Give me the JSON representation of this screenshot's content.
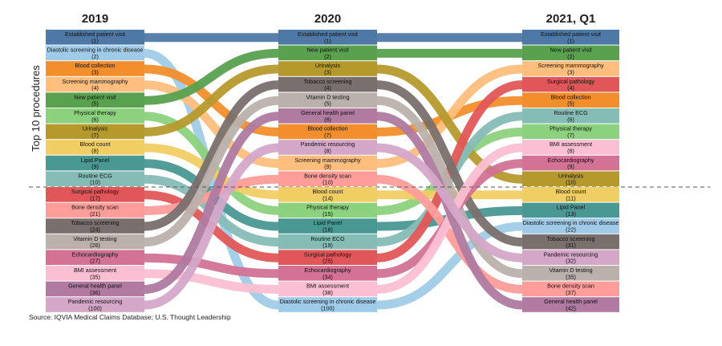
{
  "chart_data": {
    "type": "bump",
    "ylabel": "Top 10 procedures",
    "columns": [
      "2019",
      "2020",
      "2021, Q1"
    ],
    "source": "Source: IQVIA Medical Claims Database; U.S. Thought Leadership",
    "top_n_cutoff": 10,
    "series": [
      {
        "name": "Established patient visit",
        "color": "#4e79a7",
        "ranks": [
          1,
          1,
          1
        ]
      },
      {
        "name": "Diastolic screening in chronic disease",
        "color": "#a0cbe8",
        "ranks": [
          2,
          100,
          22
        ]
      },
      {
        "name": "Blood collection",
        "color": "#f28e2b",
        "ranks": [
          3,
          7,
          5
        ]
      },
      {
        "name": "Screening mammography",
        "color": "#ffbe7d",
        "ranks": [
          4,
          9,
          3
        ]
      },
      {
        "name": "New patient visit",
        "color": "#59a14f",
        "ranks": [
          5,
          2,
          2
        ]
      },
      {
        "name": "Physical therapy",
        "color": "#8cd17d",
        "ranks": [
          6,
          15,
          7
        ]
      },
      {
        "name": "Urinalysis",
        "color": "#b6992d",
        "ranks": [
          7,
          3,
          10
        ]
      },
      {
        "name": "Blood count",
        "color": "#f1ce63",
        "ranks": [
          8,
          14,
          11
        ]
      },
      {
        "name": "Lipid Panel",
        "color": "#499894",
        "ranks": [
          9,
          18,
          13
        ]
      },
      {
        "name": "Routine ECG",
        "color": "#86bcb6",
        "ranks": [
          10,
          19,
          6
        ]
      },
      {
        "name": "Surgical pathology",
        "color": "#e15759",
        "ranks": [
          17,
          25,
          4
        ]
      },
      {
        "name": "Bone density scan",
        "color": "#ff9d9a",
        "ranks": [
          21,
          10,
          37
        ]
      },
      {
        "name": "Tobacco screening",
        "color": "#79706e",
        "ranks": [
          24,
          4,
          31
        ]
      },
      {
        "name": "Vitamin D testing",
        "color": "#bab0ac",
        "ranks": [
          26,
          5,
          35
        ]
      },
      {
        "name": "Echocardiography",
        "color": "#d37295",
        "ranks": [
          27,
          34,
          9
        ]
      },
      {
        "name": "BMI assessment",
        "color": "#fabfd2",
        "ranks": [
          35,
          38,
          8
        ]
      },
      {
        "name": "General health panel",
        "color": "#b07aa1",
        "ranks": [
          36,
          6,
          42
        ]
      },
      {
        "name": "Pandemic resourcing",
        "color": "#d4a6c8",
        "ranks": [
          100,
          8,
          32
        ]
      }
    ]
  }
}
